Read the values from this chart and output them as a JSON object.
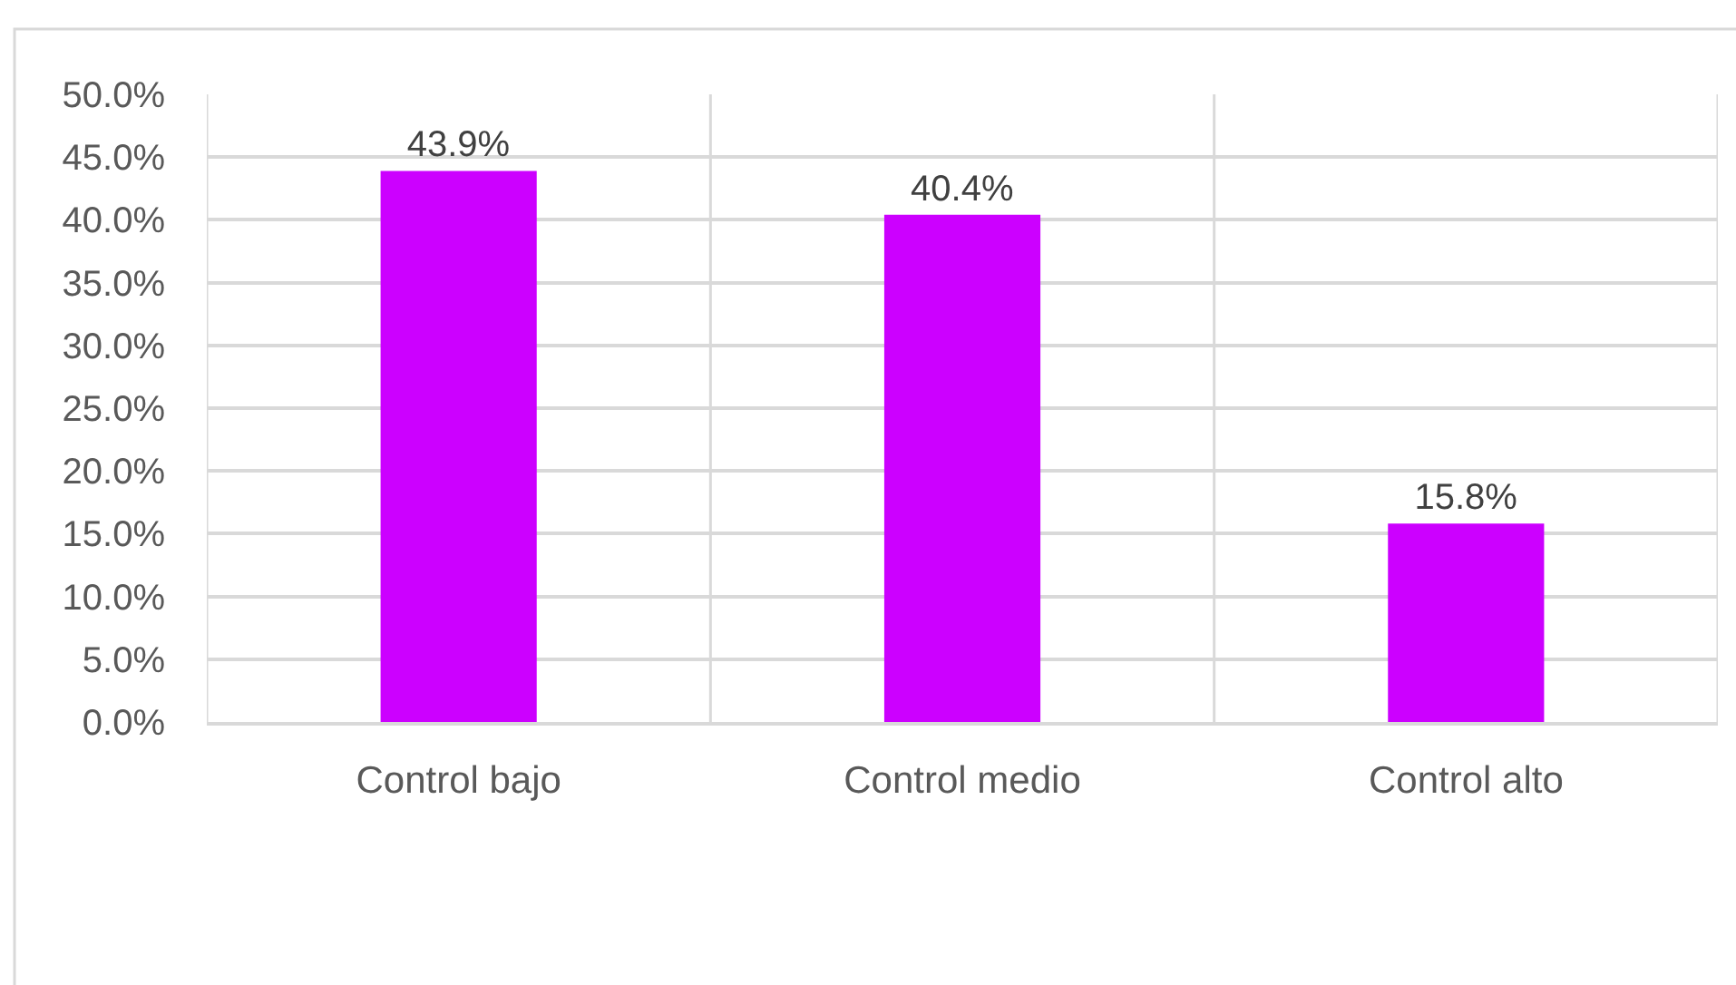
{
  "chart_data": {
    "type": "bar",
    "categories": [
      "Control bajo",
      "Control medio",
      "Control alto"
    ],
    "values": [
      43.9,
      40.4,
      15.8
    ],
    "color": "#cc00ff",
    "value_labels": [
      "43.9%",
      "40.4%",
      "15.8%"
    ],
    "ylim": [
      0,
      50
    ],
    "yticks": [
      {
        "value": 0,
        "label": "0.0%"
      },
      {
        "value": 5,
        "label": "5.0%"
      },
      {
        "value": 10,
        "label": "10.0%"
      },
      {
        "value": 15,
        "label": "15.0%"
      },
      {
        "value": 20,
        "label": "20.0%"
      },
      {
        "value": 25,
        "label": "25.0%"
      },
      {
        "value": 30,
        "label": "30.0%"
      },
      {
        "value": 35,
        "label": "35.0%"
      },
      {
        "value": 40,
        "label": "40.0%"
      },
      {
        "value": 45,
        "label": "45.0%"
      },
      {
        "value": 50,
        "label": "50.0%"
      }
    ],
    "grid": true
  }
}
